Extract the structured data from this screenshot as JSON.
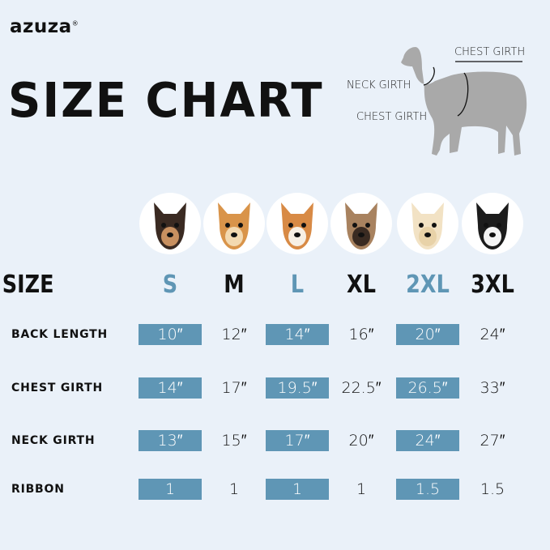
{
  "brand": {
    "name": "azuza",
    "registered": "®"
  },
  "title": "SIZE CHART",
  "diagram": {
    "labels": {
      "top": "CHEST GIRTH",
      "neck": "NECK GIRTH",
      "chest": "CHEST GIRTH"
    },
    "silhouette_color": "#a9a9a9"
  },
  "colors": {
    "background": "#eaf1f9",
    "highlight": "#5f96b5",
    "highlight_text": "#5f96b5"
  },
  "table": {
    "size_header": "SIZE",
    "sizes": [
      {
        "label": "S",
        "highlight": true,
        "dog": "chihuahua"
      },
      {
        "label": "M",
        "highlight": false,
        "dog": "pomeranian"
      },
      {
        "label": "L",
        "highlight": true,
        "dog": "shiba-inu"
      },
      {
        "label": "XL",
        "highlight": false,
        "dog": "french-bulldog"
      },
      {
        "label": "2XL",
        "highlight": true,
        "dog": "labrador"
      },
      {
        "label": "3XL",
        "highlight": false,
        "dog": "border-collie"
      }
    ],
    "rows": [
      {
        "label": "BACK LENGTH",
        "values": [
          "10″",
          "12″",
          "14″",
          "16″",
          "20″",
          "24″"
        ]
      },
      {
        "label": "CHEST GIRTH",
        "values": [
          "14″",
          "17″",
          "19.5″",
          "22.5″",
          "26.5″",
          "33″"
        ]
      },
      {
        "label": "NECK GIRTH",
        "values": [
          "13″",
          "15″",
          "17″",
          "20″",
          "24″",
          "27″"
        ]
      },
      {
        "label": "RIBBON",
        "values": [
          "1",
          "1",
          "1",
          "1",
          "1.5",
          "1.5"
        ]
      }
    ]
  }
}
